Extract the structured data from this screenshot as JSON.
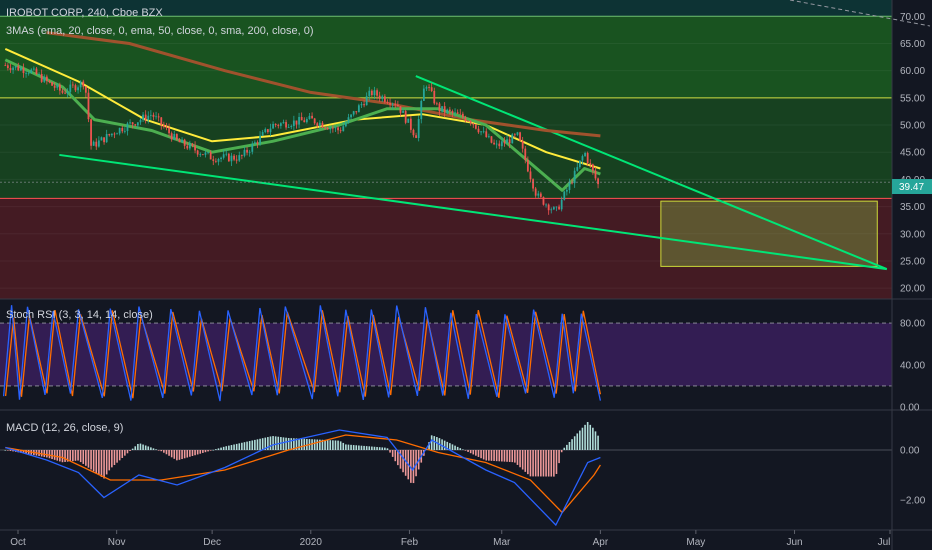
{
  "header": {
    "symbol_title": "IROBOT CORP, 240, Cboe BZX",
    "ma_label": "3MAs (ema, 20, close, 0, ema, 50, close, 0, sma, 200, close, 0)",
    "last_price": "39.47"
  },
  "colors": {
    "background": "#131722",
    "price_up": "#26a69a",
    "price_down": "#ef5350",
    "ema20": "#4caf50",
    "ema50": "#ffeb3b",
    "sma200": "#a0522d",
    "trendline": "#00e676",
    "zone_green": "#1b5e20",
    "zone_red": "#4a1c24",
    "rsi_band": "#3a1f5c",
    "target_box": "#8bc34a"
  },
  "chart_data": [
    {
      "type": "candlestick",
      "panel": "price",
      "x_ticks": [
        "Oct",
        "Nov",
        "Dec",
        "2020",
        "Feb",
        "Mar",
        "Apr",
        "May",
        "Jun",
        "Jul"
      ],
      "y_ticks": [
        "70.00",
        "65.00",
        "60.00",
        "55.00",
        "50.00",
        "45.00",
        "40.00",
        "35.00",
        "30.00",
        "25.00",
        "20.00"
      ],
      "ylim": [
        18,
        73
      ],
      "horizontal_levels": [
        70,
        55,
        36.5
      ],
      "close_path": [
        [
          "2019-09-27",
          61
        ],
        [
          "2019-10-05",
          60
        ],
        [
          "2019-10-15",
          56
        ],
        [
          "2019-10-22",
          58
        ],
        [
          "2019-10-24",
          46
        ],
        [
          "2019-11-01",
          49
        ],
        [
          "2019-11-12",
          52
        ],
        [
          "2019-11-20",
          47
        ],
        [
          "2019-12-01",
          44
        ],
        [
          "2019-12-10",
          44
        ],
        [
          "2019-12-20",
          50
        ],
        [
          "2020-01-01",
          51
        ],
        [
          "2020-01-10",
          49
        ],
        [
          "2020-01-20",
          56
        ],
        [
          "2020-01-28",
          54
        ],
        [
          "2020-02-03",
          48
        ],
        [
          "2020-02-06",
          58
        ],
        [
          "2020-02-10",
          53
        ],
        [
          "2020-02-20",
          51
        ],
        [
          "2020-02-28",
          46
        ],
        [
          "2020-03-06",
          48
        ],
        [
          "2020-03-12",
          37
        ],
        [
          "2020-03-18",
          34
        ],
        [
          "2020-03-24",
          41
        ],
        [
          "2020-03-27",
          45
        ],
        [
          "2020-04-01",
          38
        ]
      ],
      "ema20": [
        [
          "2019-09-27",
          62
        ],
        [
          "2019-10-15",
          57
        ],
        [
          "2019-10-25",
          51
        ],
        [
          "2019-11-12",
          49
        ],
        [
          "2019-12-01",
          45
        ],
        [
          "2019-12-20",
          47
        ],
        [
          "2020-01-10",
          50
        ],
        [
          "2020-01-25",
          53
        ],
        [
          "2020-02-10",
          53
        ],
        [
          "2020-02-25",
          50
        ],
        [
          "2020-03-10",
          43
        ],
        [
          "2020-03-20",
          38
        ],
        [
          "2020-03-27",
          42
        ],
        [
          "2020-04-01",
          41
        ]
      ],
      "ema50": [
        [
          "2019-09-27",
          64
        ],
        [
          "2019-10-20",
          58
        ],
        [
          "2019-11-10",
          51
        ],
        [
          "2019-12-01",
          47
        ],
        [
          "2019-12-20",
          48
        ],
        [
          "2020-01-15",
          51
        ],
        [
          "2020-02-05",
          52
        ],
        [
          "2020-02-25",
          50
        ],
        [
          "2020-03-15",
          45
        ],
        [
          "2020-04-01",
          42
        ]
      ],
      "sma200": [
        [
          "2019-10-10",
          67
        ],
        [
          "2019-11-05",
          65
        ],
        [
          "2019-12-05",
          60
        ],
        [
          "2020-01-01",
          56
        ],
        [
          "2020-01-25",
          54
        ],
        [
          "2020-02-20",
          51
        ],
        [
          "2020-03-15",
          49
        ],
        [
          "2020-04-01",
          48
        ]
      ],
      "trendlines": [
        [
          [
            "2019-10-14",
            44.5
          ],
          [
            "2020-06-30",
            23.5
          ]
        ],
        [
          [
            "2020-02-03",
            59
          ],
          [
            "2020-06-30",
            23.5
          ]
        ]
      ],
      "target_box": {
        "x": [
          "2020-04-20",
          "2020-06-27"
        ],
        "y": [
          24,
          36
        ]
      }
    },
    {
      "type": "line",
      "panel": "stoch_rsi",
      "title": "Stoch RSI (3, 3, 14, 14, close)",
      "y_ticks": [
        "80.00",
        "40.00",
        "0.00"
      ],
      "ylim": [
        -3,
        103
      ],
      "bands": [
        20,
        80
      ]
    },
    {
      "type": "bar",
      "panel": "macd",
      "title": "MACD (12, 26, close, 9)",
      "y_ticks": [
        "0.00",
        "−2.00"
      ],
      "ylim": [
        -3.2,
        1.6
      ]
    }
  ]
}
